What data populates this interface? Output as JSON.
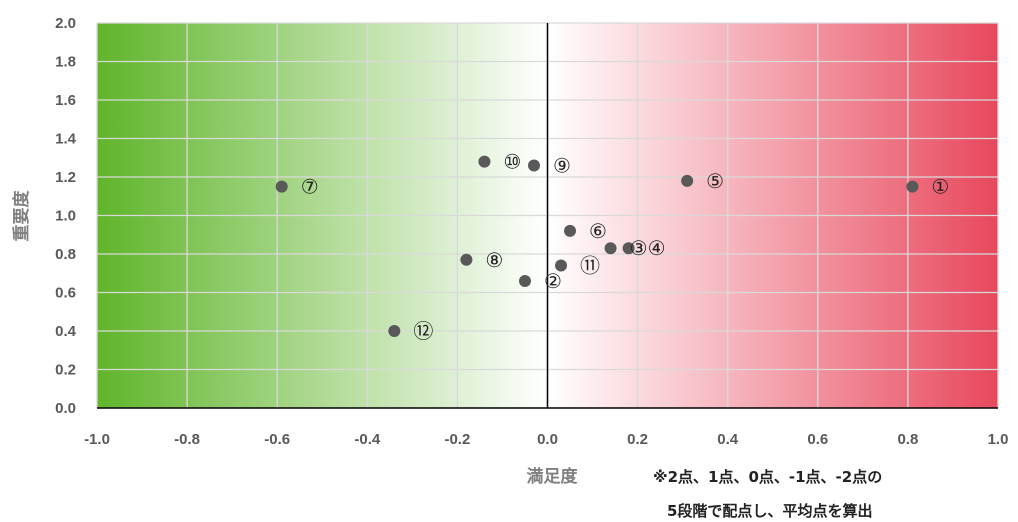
{
  "chart_data": {
    "type": "scatter",
    "title": "",
    "xlabel": "満足度",
    "ylabel": "重要度",
    "xlim": [
      -1.0,
      1.0
    ],
    "ylim": [
      0.0,
      2.0
    ],
    "x_ticks": [
      "-1.0",
      "-0.8",
      "-0.6",
      "-0.4",
      "-0.2",
      "0.0",
      "0.2",
      "0.4",
      "0.6",
      "0.8",
      "1.0"
    ],
    "y_ticks": [
      "0.0",
      "0.2",
      "0.4",
      "0.6",
      "0.8",
      "1.0",
      "1.2",
      "1.4",
      "1.6",
      "1.8",
      "2.0"
    ],
    "grid": true,
    "background_gradient": {
      "left_color": "#5fb52a",
      "middle_color": "#ffffff",
      "right_color": "#e8485d"
    },
    "point_color": "#595959",
    "points": [
      {
        "label": "①",
        "x": 0.81,
        "y": 1.15
      },
      {
        "label": "②",
        "x": -0.05,
        "y": 0.66
      },
      {
        "label": "③",
        "x": 0.14,
        "y": 0.83
      },
      {
        "label": "④",
        "x": 0.18,
        "y": 0.83
      },
      {
        "label": "⑤",
        "x": 0.31,
        "y": 1.18
      },
      {
        "label": "⑥",
        "x": 0.05,
        "y": 0.92
      },
      {
        "label": "⑦",
        "x": -0.59,
        "y": 1.15
      },
      {
        "label": "⑧",
        "x": -0.18,
        "y": 0.77
      },
      {
        "label": "⑨",
        "x": -0.03,
        "y": 1.26
      },
      {
        "label": "⑩",
        "x": -0.14,
        "y": 1.28
      },
      {
        "label": "⑪",
        "x": 0.03,
        "y": 0.74
      },
      {
        "label": "⑫",
        "x": -0.34,
        "y": 0.4
      }
    ],
    "note_lines": [
      "※2点、1点、0点、-1点、-2点の",
      "5段階で配点し、平均点を算出"
    ]
  }
}
